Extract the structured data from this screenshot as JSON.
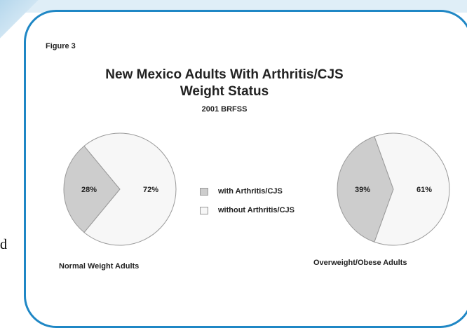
{
  "figure_label": "Figure 3",
  "stray_text": "d",
  "chart_data": {
    "type": "pie",
    "title": "New Mexico Adults With Arthritis/CJS",
    "title_line2": "Weight Status",
    "subtitle": "2001 BRFSS",
    "legend": [
      {
        "label": "with Arthritis/CJS",
        "color": "#cdcdcd"
      },
      {
        "label": "without Arthritis/CJS",
        "color": "#f7f7f7"
      }
    ],
    "pies": [
      {
        "name": "Normal Weight Adults",
        "values": [
          28,
          72
        ],
        "labels": [
          "28%",
          "72%"
        ]
      },
      {
        "name": "Overweight/Obese Adults",
        "values": [
          39,
          61
        ],
        "labels": [
          "39%",
          "61%"
        ]
      }
    ]
  },
  "colors": {
    "frame": "#1f87c5",
    "with": "#cdcdcd",
    "without": "#f7f7f7",
    "outline": "#9a9a9a"
  }
}
